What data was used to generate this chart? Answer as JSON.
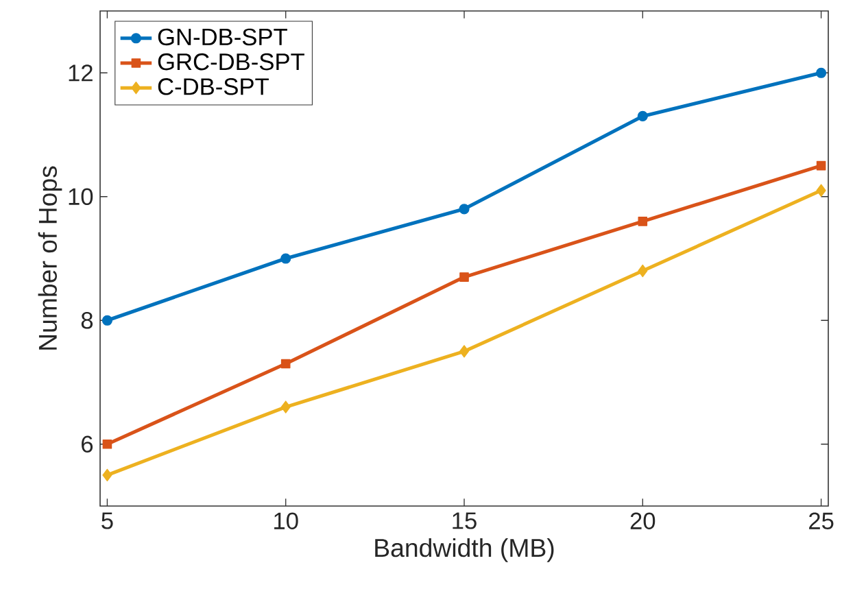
{
  "chart_data": {
    "type": "line",
    "xlabel": "Bandwidth (MB)",
    "ylabel": "Number of Hops",
    "x": [
      5,
      10,
      15,
      20,
      25
    ],
    "series": [
      {
        "name": "GN-DB-SPT",
        "color": "#0072bd",
        "marker": "circle",
        "values": [
          8,
          9,
          9.8,
          11.3,
          12
        ]
      },
      {
        "name": "GRC-DB-SPT",
        "color": "#d95319",
        "marker": "square",
        "values": [
          6,
          7.3,
          8.7,
          9.6,
          10.5
        ]
      },
      {
        "name": "C-DB-SPT",
        "color": "#edb120",
        "marker": "diamond",
        "values": [
          5.5,
          6.6,
          7.5,
          8.8,
          10.1
        ]
      }
    ],
    "xlim": [
      4.8,
      25.2
    ],
    "ylim": [
      5,
      13
    ],
    "xticks": [
      5,
      10,
      15,
      20,
      25
    ],
    "yticks": [
      6,
      8,
      10,
      12
    ],
    "legend": "top left",
    "grid": false,
    "line_style": "solid"
  }
}
